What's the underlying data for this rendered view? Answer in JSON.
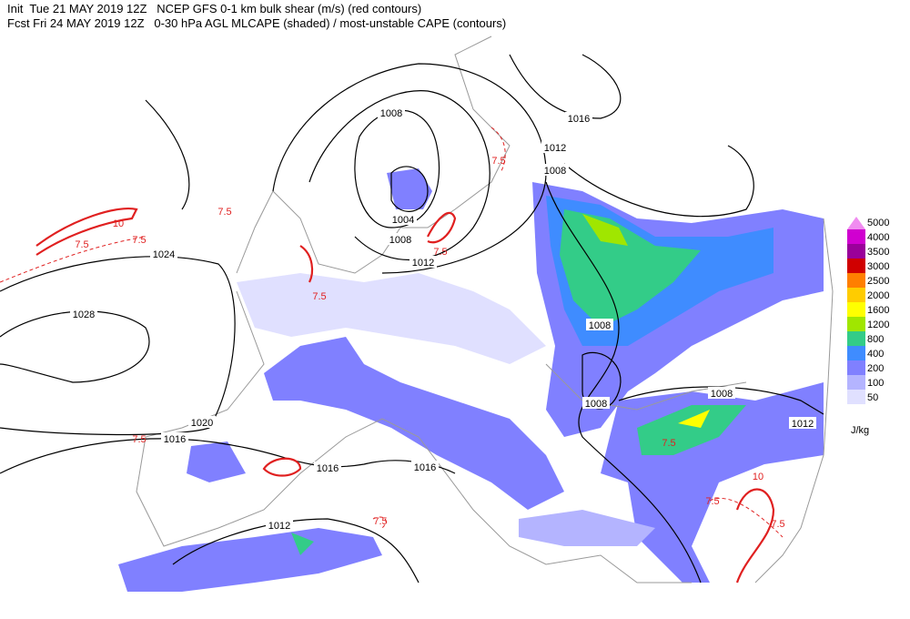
{
  "header": {
    "lines": [
      "Init  Tue 21 MAY 2019 12Z   NCEP GFS 0-1 km bulk shear (m/s) (red contours)",
      "Fcst Fri 24 MAY 2019 12Z   0-30 hPa AGL MLCAPE (shaded) / most-unstable CAPE (contours)"
    ]
  },
  "legend": {
    "unit": "J/kg",
    "levels": [
      5000,
      4000,
      3500,
      3000,
      2500,
      2000,
      1600,
      1200,
      800,
      400,
      200,
      100,
      50
    ],
    "colors": [
      "#f08cf0",
      "#d000d0",
      "#9a009a",
      "#d00000",
      "#ff7f00",
      "#ffcc00",
      "#ffff00",
      "#a0e600",
      "#33cc88",
      "#3f8cff",
      "#8080ff",
      "#b4b4ff",
      "#e0e0ff"
    ]
  },
  "isobar_labels": [
    1008,
    1016,
    1012,
    1008,
    1004,
    1008,
    1012,
    1024,
    1028,
    1008,
    1008,
    1008,
    1012,
    1020,
    1016,
    1016,
    1016,
    1012
  ],
  "shear_labels": [
    "7.5",
    "7.5",
    "10",
    "7.5",
    "7.5",
    "7.5",
    "7.5",
    "7.5",
    "7.5",
    "7.5",
    "7.5",
    "10",
    "7.5"
  ]
}
